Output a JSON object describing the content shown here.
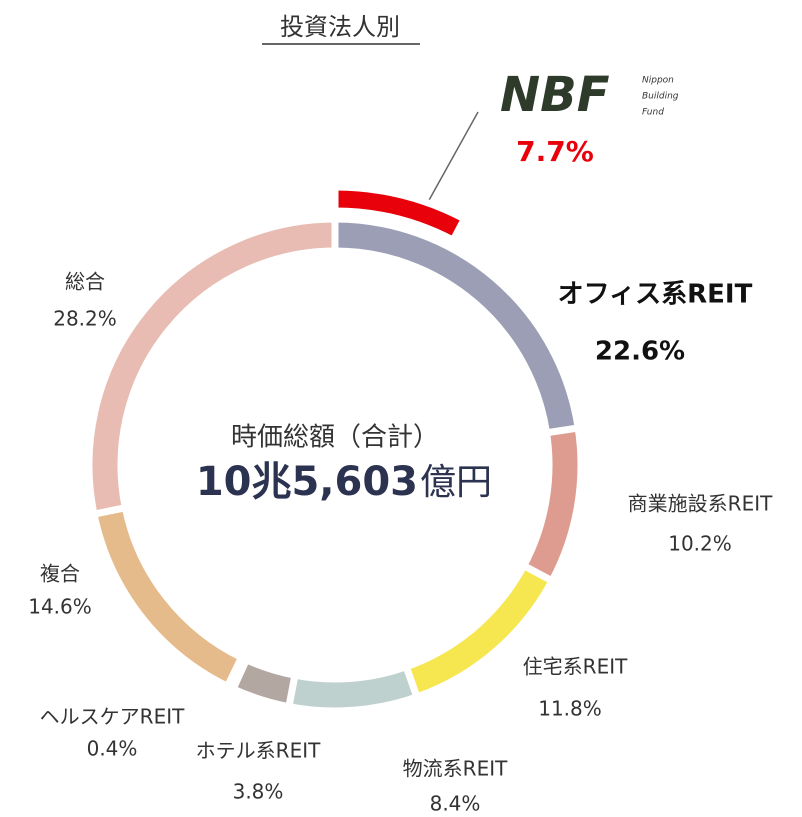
{
  "chart_data": {
    "type": "donut",
    "title": "投資法人別",
    "categories": [
      "オフィス系REIT",
      "商業施設系REIT",
      "住宅系REIT",
      "物流系REIT",
      "ホテル系REIT",
      "ヘルスケアREIT",
      "複合",
      "総合"
    ],
    "values": [
      22.6,
      10.2,
      11.8,
      8.4,
      3.8,
      0.4,
      14.6,
      28.2
    ],
    "value_labels": [
      "22.6%",
      "10.2%",
      "11.8%",
      "8.4%",
      "3.8%",
      "0.4%",
      "14.6%",
      "28.2%"
    ],
    "colors": [
      "#9c9eb5",
      "#de9c90",
      "#f6e650",
      "#bfd1ce",
      "#b3a7a2",
      "#c7ad96",
      "#e6bb8c",
      "#e8bcb3"
    ],
    "center_label": "時価総額（合計）",
    "total_value": "10兆5,603",
    "total_unit": "億円",
    "highlight": {
      "logo": "NBF",
      "logo_lines": [
        "Nippon",
        "Building",
        "Fund"
      ],
      "value": 7.7,
      "value_label": "7.7%",
      "color": "#e8000b"
    }
  }
}
